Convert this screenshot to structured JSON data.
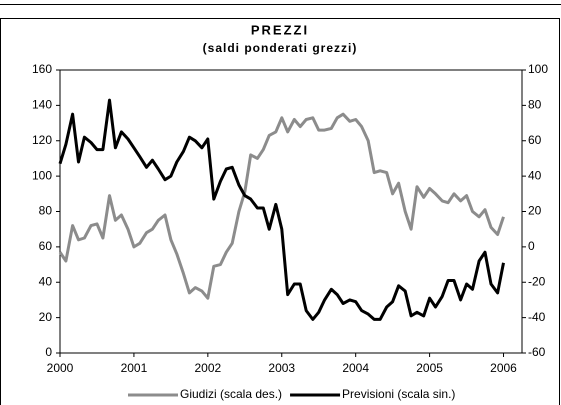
{
  "chart_data": {
    "type": "line",
    "title": "PREZZI",
    "subtitle": "(saldi ponderati grezzi)",
    "x": [
      2000,
      2000.08,
      2000.17,
      2000.25,
      2000.33,
      2000.42,
      2000.5,
      2000.58,
      2000.67,
      2000.75,
      2000.83,
      2000.92,
      2001,
      2001.08,
      2001.17,
      2001.25,
      2001.33,
      2001.42,
      2001.5,
      2001.58,
      2001.67,
      2001.75,
      2001.83,
      2001.92,
      2002,
      2002.08,
      2002.17,
      2002.25,
      2002.33,
      2002.42,
      2002.5,
      2002.58,
      2002.67,
      2002.75,
      2002.83,
      2002.92,
      2003,
      2003.08,
      2003.17,
      2003.25,
      2003.33,
      2003.42,
      2003.5,
      2003.58,
      2003.67,
      2003.75,
      2003.83,
      2003.92,
      2004,
      2004.08,
      2004.17,
      2004.25,
      2004.33,
      2004.42,
      2004.5,
      2004.58,
      2004.67,
      2004.75,
      2004.83,
      2004.92,
      2005,
      2005.08,
      2005.17,
      2005.25,
      2005.33,
      2005.42,
      2005.5,
      2005.58,
      2005.67,
      2005.75,
      2005.83,
      2005.92,
      2006
    ],
    "series": [
      {
        "name": "Giudizi (scala des.)",
        "color": "#8c8c8c",
        "axis": "y2",
        "values": [
          -3,
          -8,
          12,
          4,
          5,
          12,
          13,
          5,
          29,
          15,
          18,
          10,
          0,
          2,
          8,
          10,
          15,
          18,
          4,
          -4,
          -15,
          -26,
          -23,
          -25,
          -29,
          -11,
          -10,
          -3,
          2,
          20,
          31,
          52,
          50,
          55,
          63,
          65,
          73,
          65,
          72,
          68,
          72,
          73,
          66,
          66,
          67,
          73,
          75,
          71,
          72,
          68,
          60,
          42,
          43,
          42,
          30,
          36,
          20,
          10,
          34,
          28,
          33,
          30,
          26,
          25,
          30,
          26,
          29,
          20,
          17,
          21,
          11,
          7,
          17
        ]
      },
      {
        "name": "Previsioni (scala sin.)",
        "color": "#000000",
        "values": [
          107,
          118,
          135,
          108,
          122,
          119,
          115,
          115,
          143,
          116,
          125,
          121,
          116,
          111,
          105,
          109,
          104,
          98,
          100,
          108,
          114,
          122,
          120,
          116,
          121,
          87,
          97,
          104,
          105,
          95,
          89,
          87,
          82,
          82,
          70,
          84,
          70,
          33,
          39,
          39,
          24,
          19,
          23,
          30,
          36,
          33,
          28,
          30,
          29,
          24,
          22,
          19,
          19,
          26,
          29,
          38,
          35,
          21,
          23,
          21,
          31,
          26,
          32,
          41,
          41,
          30,
          39,
          36,
          52,
          57,
          39,
          34,
          51
        ]
      }
    ],
    "xlim": [
      2000,
      2006.25
    ],
    "xticks": [
      2000,
      2001,
      2002,
      2003,
      2004,
      2005,
      2006
    ],
    "ylim": [
      0,
      160
    ],
    "yticks": [
      0,
      20,
      40,
      60,
      80,
      100,
      120,
      140,
      160
    ],
    "y2lim": [
      -60,
      100
    ],
    "y2ticks": [
      -60,
      -40,
      -20,
      0,
      20,
      40,
      60,
      80,
      100
    ]
  }
}
